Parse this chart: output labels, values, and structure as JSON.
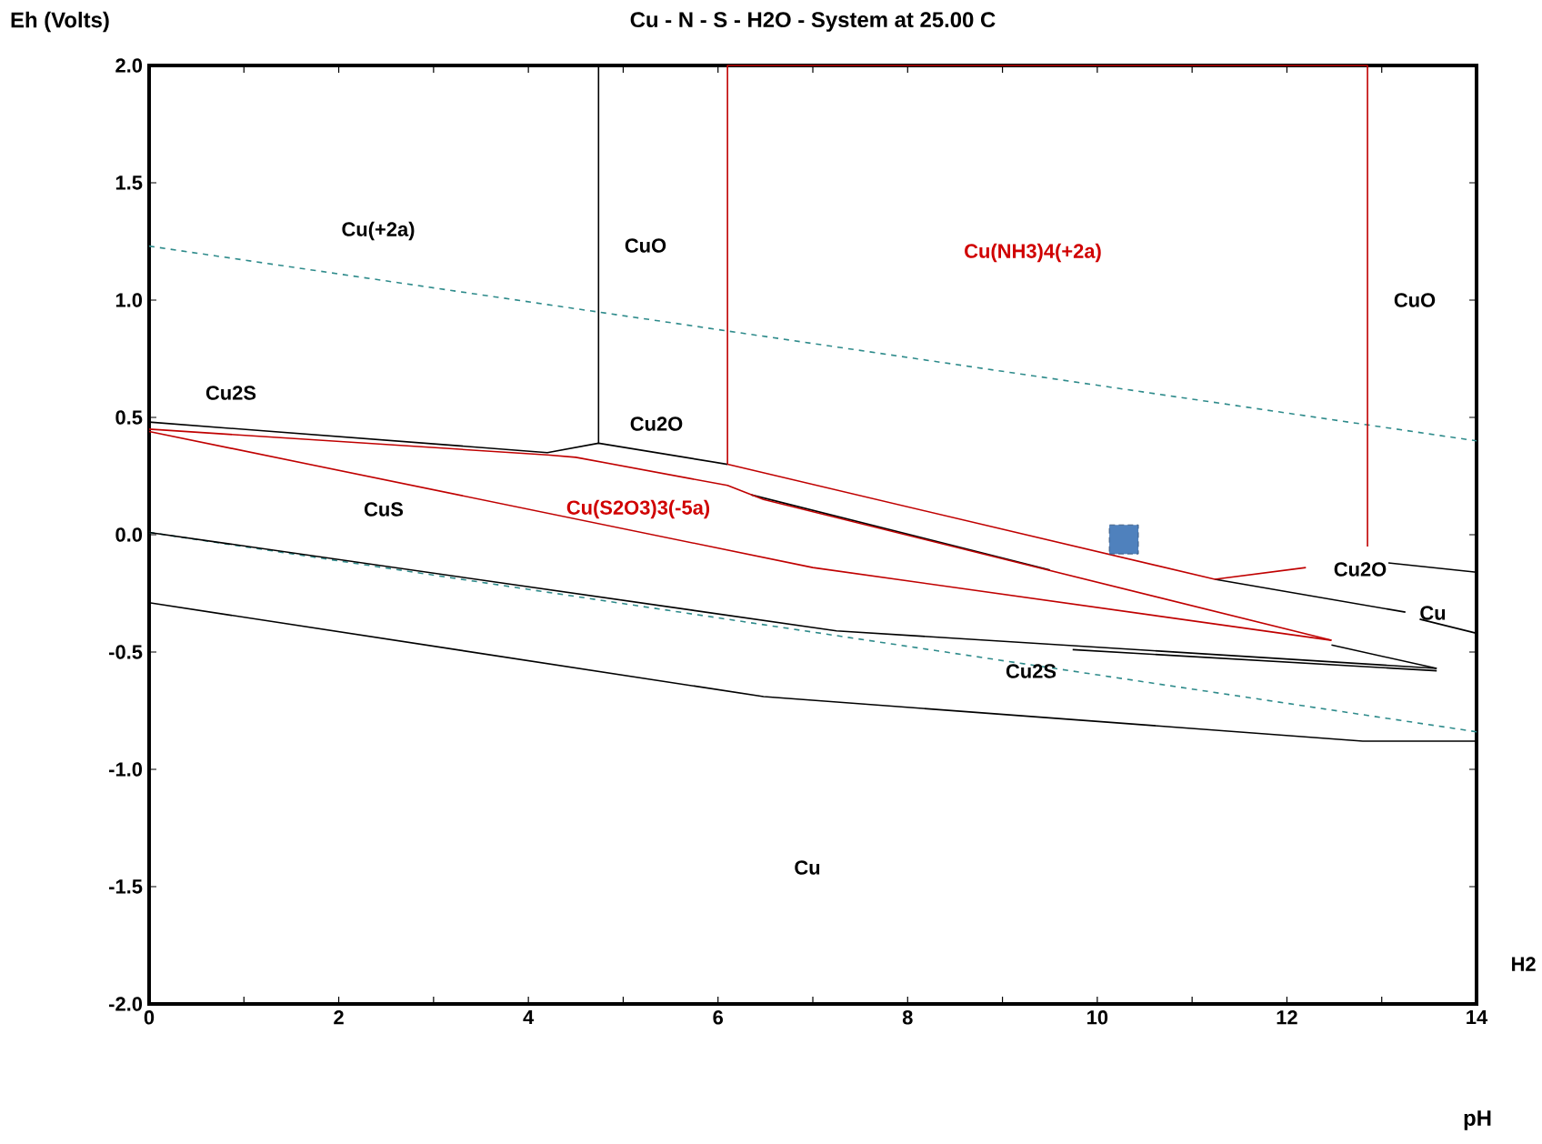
{
  "chart_data": {
    "type": "line",
    "title": "Cu - N - S - H2O - System at 25.00 C",
    "xlabel": "pH",
    "ylabel": "Eh (Volts)",
    "xlim": [
      0,
      14
    ],
    "ylim": [
      -2,
      2
    ],
    "xticks": [
      0,
      {
        "value": 1,
        "label": null
      },
      2,
      {
        "value": 3,
        "label": null
      },
      4,
      {
        "value": 5,
        "label": null
      },
      6,
      {
        "value": 7,
        "label": null
      },
      8,
      {
        "value": 9,
        "label": null
      },
      10,
      {
        "value": 11,
        "label": null
      },
      12,
      {
        "value": 13,
        "label": null
      },
      14
    ],
    "yticks": [
      {
        "value": -2,
        "label": "-2.0"
      },
      {
        "value": -1.5,
        "label": "-1.5"
      },
      {
        "value": -1,
        "label": "-1.0"
      },
      {
        "value": -0.5,
        "label": "-0.5"
      },
      {
        "value": 0,
        "label": "0.0"
      },
      {
        "value": 0.5,
        "label": "0.5"
      },
      {
        "value": 1,
        "label": "1.0"
      },
      {
        "value": 1.5,
        "label": "1.5"
      },
      {
        "value": 2,
        "label": "2.0"
      }
    ],
    "grid": false,
    "marker": "none",
    "line_style": "solid",
    "series": [
      {
        "color": "#2e8b8b",
        "line_style": "dashed",
        "x": [
          0,
          14
        ],
        "values": [
          1.23,
          0.4
        ]
      },
      {
        "color": "#2e8b8b",
        "line_style": "dashed",
        "x": [
          0,
          14
        ],
        "values": [
          0.01,
          -0.84
        ]
      },
      {
        "color": "#000000",
        "x": [
          4.74,
          4.74
        ],
        "values": [
          2,
          0.39
        ]
      },
      {
        "color": "#000000",
        "x": [
          0,
          4.2,
          4.74,
          6.1
        ],
        "values": [
          0.48,
          0.35,
          0.39,
          0.3
        ]
      },
      {
        "color": "#000000",
        "x": [
          6.35,
          9.5
        ],
        "values": [
          0.17,
          -0.15
        ]
      },
      {
        "color": "#000000",
        "x": [
          11.24,
          13.25
        ],
        "values": [
          -0.19,
          -0.33
        ]
      },
      {
        "color": "#000000",
        "x": [
          13.07,
          14
        ],
        "values": [
          -0.12,
          -0.16
        ]
      },
      {
        "color": "#000000",
        "x": [
          13.4,
          14
        ],
        "values": [
          -0.36,
          -0.42
        ]
      },
      {
        "color": "#000000",
        "x": [
          0,
          7.25,
          13.58
        ],
        "values": [
          0.01,
          -0.41,
          -0.57
        ]
      },
      {
        "color": "#000000",
        "x": [
          12.47,
          13.58
        ],
        "values": [
          -0.47,
          -0.57
        ]
      },
      {
        "color": "#000000",
        "x": [
          9.74,
          13.58
        ],
        "values": [
          -0.49,
          -0.58
        ]
      },
      {
        "color": "#000000",
        "x": [
          0,
          6.48,
          12.8,
          14
        ],
        "values": [
          -0.29,
          -0.69,
          -0.88,
          -0.88
        ]
      },
      {
        "color": "#c00000",
        "x": [
          6.1,
          6.1,
          12.85,
          12.85
        ],
        "values": [
          0.3,
          2,
          2,
          -0.05
        ]
      },
      {
        "color": "#c00000",
        "x": [
          6.1,
          11.24,
          12.2
        ],
        "values": [
          0.3,
          -0.19,
          -0.14
        ]
      },
      {
        "color": "#c00000",
        "x": [
          0,
          7.0,
          12.47
        ],
        "values": [
          0.44,
          -0.14,
          -0.45
        ]
      },
      {
        "color": "#c00000",
        "x": [
          0,
          4.2,
          4.5,
          6.1,
          6.48,
          12.47
        ],
        "values": [
          0.45,
          0.34,
          0.33,
          0.21,
          0.15,
          -0.45
        ]
      },
      {
        "type": "scatter",
        "color": "#4f81bd",
        "marker": "square",
        "x": [
          10.28
        ],
        "values": [
          -0.02
        ]
      }
    ],
    "annotations": [
      "Cu(+2a)",
      "CuO",
      "Cu(NH3)4(+2a)",
      "CuO",
      "Cu2S",
      "Cu2O",
      "CuS",
      "Cu(S2O3)3(-5a)",
      "Cu2O",
      "Cu",
      "Cu2S",
      "Cu",
      "H2"
    ]
  }
}
